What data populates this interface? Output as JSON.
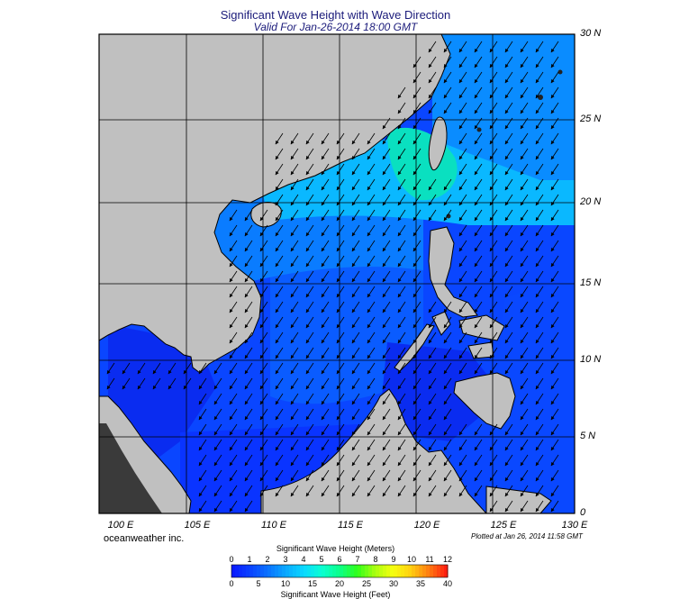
{
  "title": "Significant Wave Height with Wave Direction",
  "subtitle": "Valid For Jan-26-2014 18:00 GMT",
  "lat_labels": [
    "30 N",
    "25 N",
    "20 N",
    "15 N",
    "10 N",
    "5 N",
    "0"
  ],
  "lon_labels": [
    "100 E",
    "105 E",
    "110 E",
    "115 E",
    "120 E",
    "125 E",
    "130 E"
  ],
  "credit": "oceanweather inc.",
  "plotted_note": "Plotted at Jan 26, 2014 11:58 GMT",
  "colorbar": {
    "meters_title": "Significant Wave Height (Meters)",
    "feet_title": "Significant Wave Height (Feet)",
    "meters_ticks": [
      "0",
      "1",
      "2",
      "3",
      "4",
      "5",
      "6",
      "7",
      "8",
      "9",
      "10",
      "11",
      "12"
    ],
    "feet_ticks": [
      "0",
      "5",
      "10",
      "15",
      "20",
      "25",
      "30",
      "35",
      "40"
    ],
    "colors": [
      "#0a1cff",
      "#0a44ff",
      "#0a74ff",
      "#0aaaff",
      "#0ad9ff",
      "#0affd2",
      "#0aff8a",
      "#30ff1a",
      "#a8ff10",
      "#f6ff10",
      "#ffd010",
      "#ff8010",
      "#ff2010"
    ]
  },
  "colors": {
    "land": "#c0c0c0",
    "ocean_deep": "#0a3cff",
    "ocean_mid": "#0a5cff",
    "ocean_light": "#0a88ff",
    "ocean_cyan": "#0ab8ff",
    "ocean_green": "#0ae8b4",
    "title": "#1a1a7a"
  },
  "wave_direction": "from the northeast (arrows pointing southwest)"
}
